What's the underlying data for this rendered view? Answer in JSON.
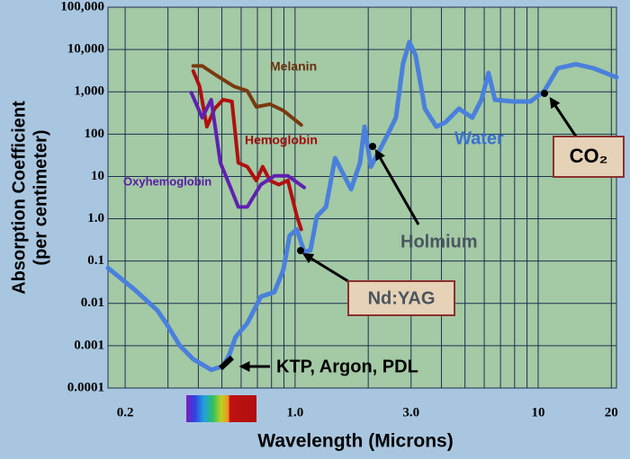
{
  "chart_data": {
    "type": "line",
    "xlabel": "Wavelength (Microns)",
    "ylabel": [
      "Absorption Coefficient",
      "(per centimeter)"
    ],
    "xscale": "log",
    "yscale": "log",
    "xlim": [
      0.17,
      21
    ],
    "ylim": [
      0.0001,
      100000
    ],
    "xticks": [
      0.2,
      {
        "value": 1,
        "label": "1.0"
      },
      {
        "value": 3,
        "label": "3.0"
      },
      10,
      20
    ],
    "xgrid": [
      0.3,
      0.4,
      0.5,
      0.6,
      0.7,
      0.8,
      0.9,
      2,
      4,
      5,
      6,
      7,
      8,
      9
    ],
    "yticks": [
      {
        "value": 100000,
        "label": "100,000"
      },
      {
        "value": 10000,
        "label": "10,000"
      },
      {
        "value": 1000,
        "label": "1,000"
      },
      100,
      10,
      {
        "value": 1,
        "label": "1.0"
      },
      0.1,
      0.01,
      0.001,
      0.0001
    ],
    "grid": true,
    "series": [
      {
        "name": "Water",
        "color": "#4a80dc",
        "x": [
          0.17,
          0.219,
          0.271,
          0.295,
          0.336,
          0.381,
          0.452,
          0.506,
          0.537,
          0.569,
          0.636,
          0.723,
          0.822,
          0.895,
          0.95,
          1.017,
          1.09,
          1.156,
          1.23,
          1.34,
          1.46,
          1.56,
          1.7,
          1.85,
          1.93,
          2.05,
          2.19,
          2.39,
          2.6,
          2.78,
          2.95,
          3.13,
          3.42,
          3.81,
          4.15,
          4.72,
          5.36,
          5.84,
          6.25,
          6.64,
          7.88,
          9.3,
          10.6,
          12.05,
          14.3,
          16.9,
          21
        ],
        "values": [
          0.069,
          0.021,
          0.0069,
          0.0034,
          0.001,
          0.00048,
          0.00027,
          0.00033,
          0.00062,
          0.0016,
          0.0034,
          0.0145,
          0.0185,
          0.062,
          0.4,
          0.56,
          0.165,
          0.18,
          1.15,
          1.9,
          27,
          13,
          5,
          21,
          150,
          17,
          35,
          92,
          245,
          4600,
          15000,
          7400,
          400,
          150,
          190,
          400,
          245,
          650,
          2800,
          650,
          590,
          590,
          1050,
          3600,
          4500,
          3600,
          2200
        ]
      },
      {
        "name": "Melanin",
        "color": "#7a3a10",
        "x": [
          0.381,
          0.415,
          0.472,
          0.56,
          0.636,
          0.693,
          0.788,
          0.895,
          1.06
        ],
        "values": [
          4100,
          4100,
          2500,
          1350,
          1050,
          440,
          510,
          360,
          165
        ]
      },
      {
        "name": "Hemoglobin",
        "color": "#b01010",
        "x": [
          0.381,
          0.405,
          0.434,
          0.467,
          0.506,
          0.55,
          0.584,
          0.636,
          0.693,
          0.736,
          0.788,
          0.857,
          0.934,
          1.017,
          1.06
        ],
        "values": [
          3100,
          1350,
          150,
          400,
          650,
          590,
          21,
          17,
          8,
          17,
          8,
          6.4,
          8,
          1.16,
          0.56
        ]
      },
      {
        "name": "Oxyhemoglobin",
        "color": "#6020b0",
        "x": [
          0.374,
          0.415,
          0.452,
          0.493,
          0.537,
          0.584,
          0.636,
          0.723,
          0.822,
          0.934,
          1.09
        ],
        "values": [
          960,
          245,
          650,
          21,
          6.4,
          1.9,
          1.9,
          6.4,
          10.3,
          10.3,
          5.5
        ]
      }
    ],
    "annotations": [
      "Holmium",
      "Nd:YAG",
      "CO₂",
      "KTP, Argon, PDL"
    ]
  }
}
